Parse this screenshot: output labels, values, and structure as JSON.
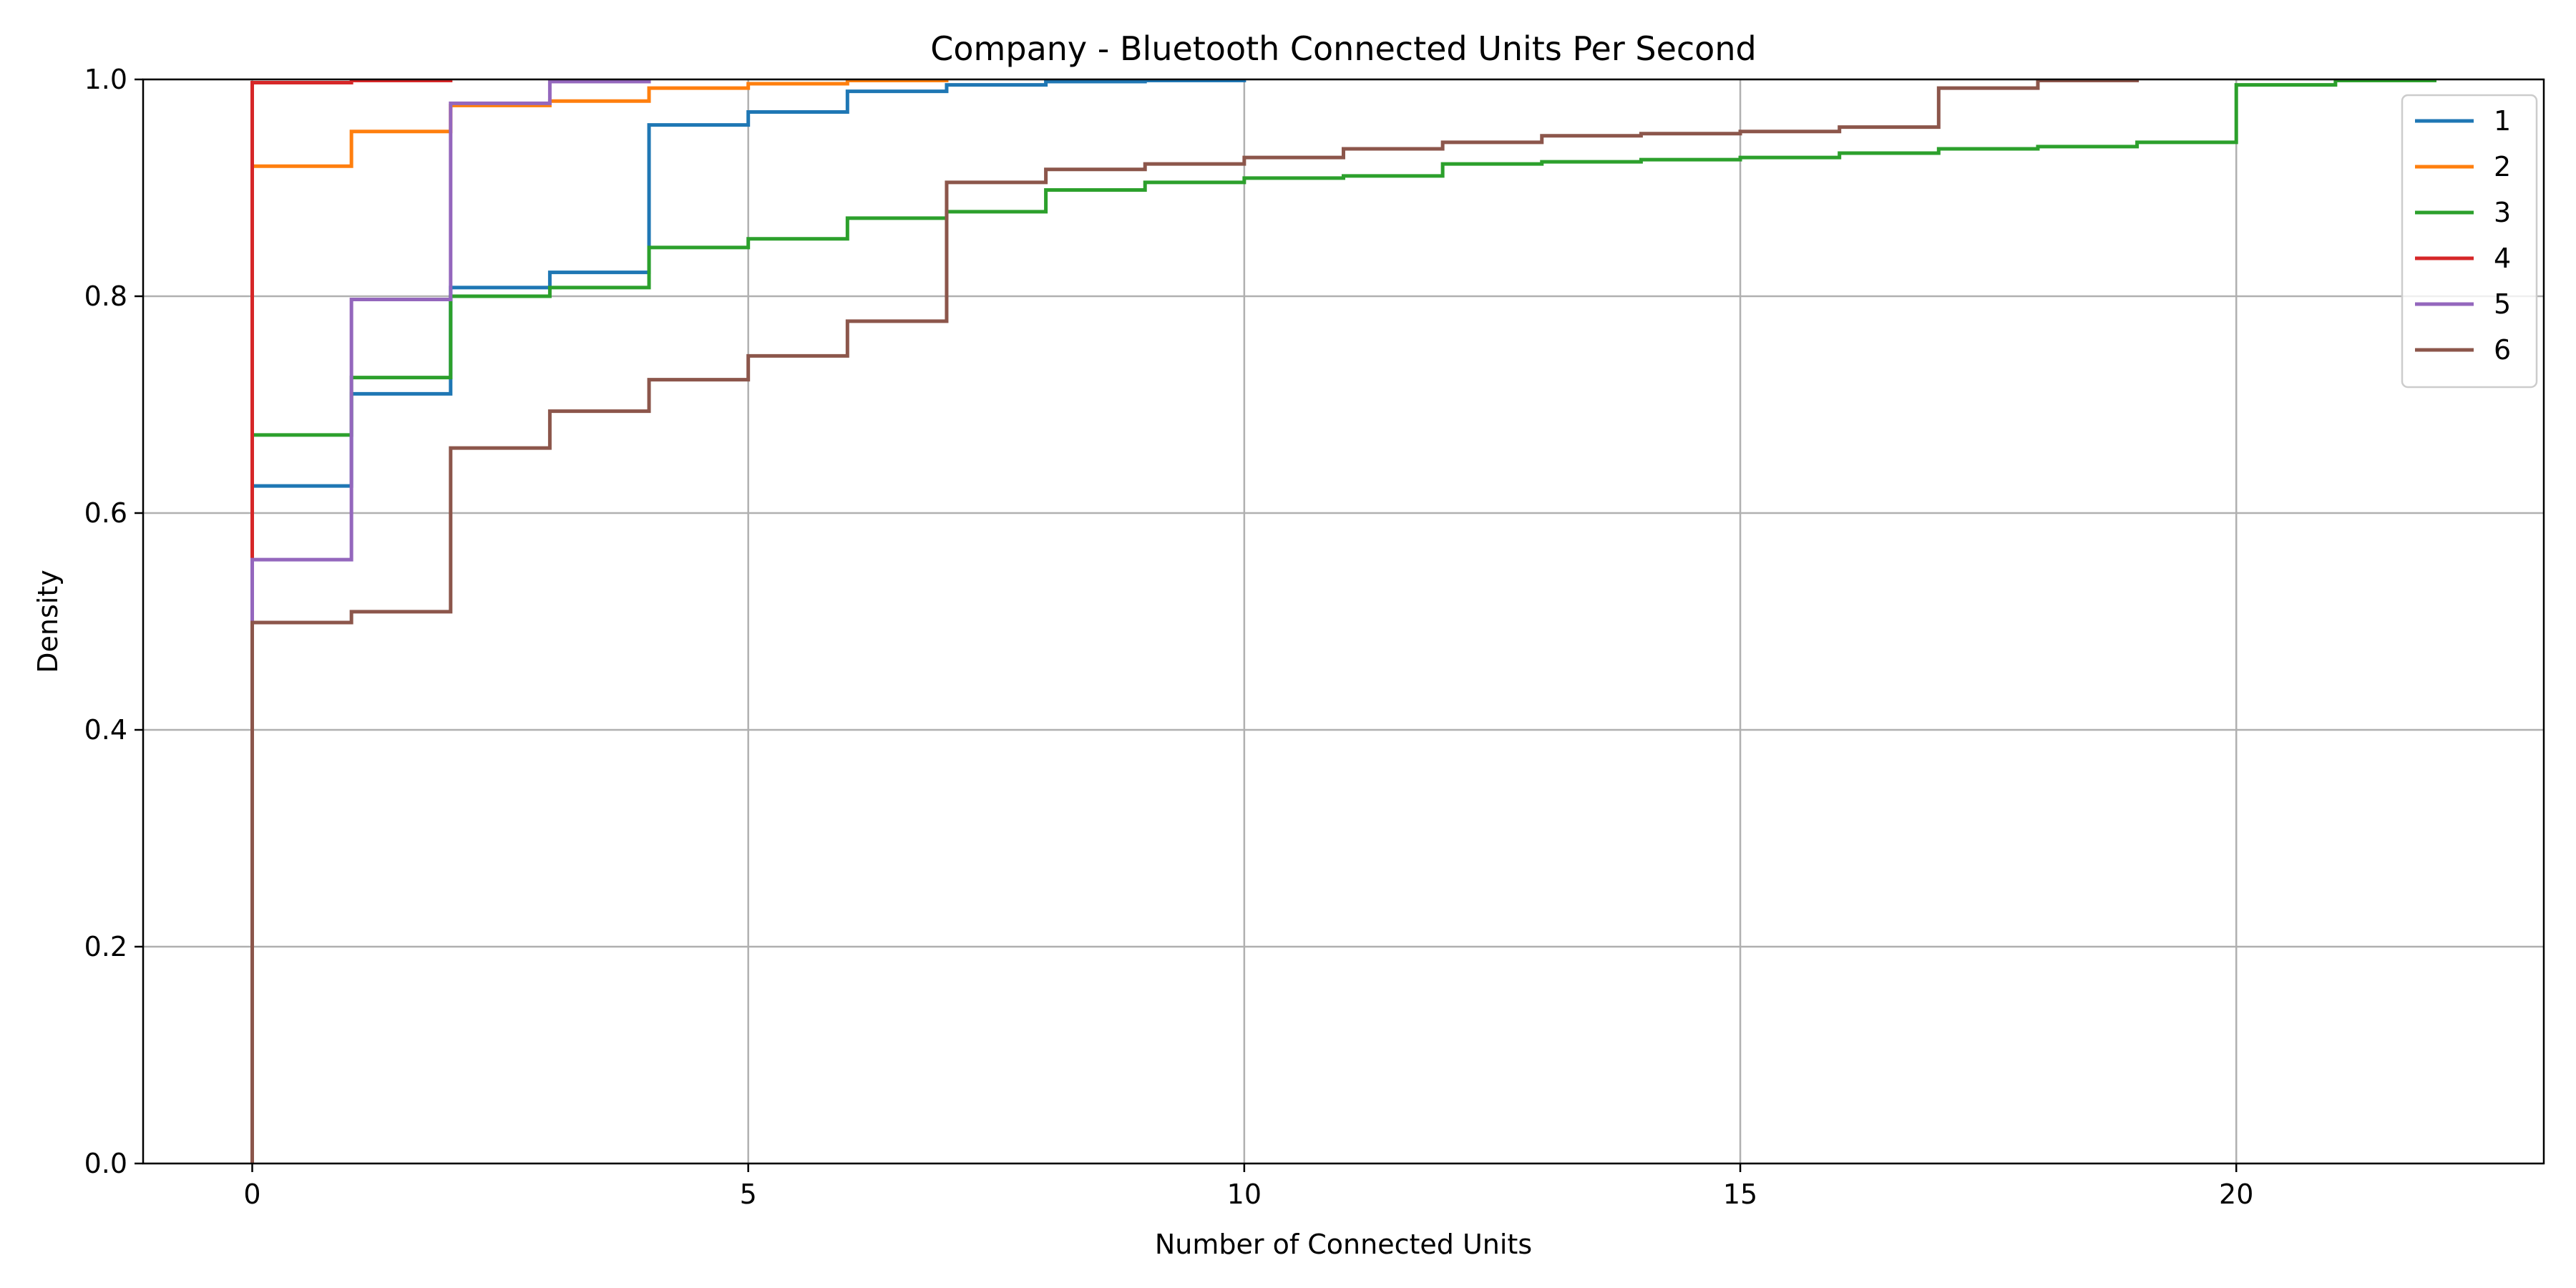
{
  "chart_data": {
    "type": "line",
    "step": "post",
    "title": "Company - Bluetooth Connected Units Per Second",
    "xlabel": "Number of Connected Units",
    "ylabel": "Density",
    "xlim": [
      -1.1,
      23.1
    ],
    "ylim": [
      0,
      1.0
    ],
    "xticks": [
      0,
      5,
      10,
      15,
      20
    ],
    "xtick_labels": [
      "0",
      "5",
      "10",
      "15",
      "20"
    ],
    "yticks": [
      0,
      0.2,
      0.4,
      0.6,
      0.8,
      1.0
    ],
    "ytick_labels": [
      "0.0",
      "0.2",
      "0.4",
      "0.6",
      "0.8",
      "1.0"
    ],
    "grid": true,
    "legend_position": "top-right",
    "series": [
      {
        "name": "1",
        "color": "#1f77b4",
        "x": [
          0,
          1,
          2,
          3,
          4,
          5,
          6,
          7,
          8,
          9,
          10
        ],
        "y": [
          0.625,
          0.71,
          0.808,
          0.822,
          0.958,
          0.97,
          0.989,
          0.995,
          0.998,
          0.999,
          1.0
        ]
      },
      {
        "name": "2",
        "color": "#ff7f0e",
        "x": [
          0,
          1,
          2,
          3,
          4,
          5,
          6,
          7
        ],
        "y": [
          0.92,
          0.952,
          0.976,
          0.98,
          0.992,
          0.996,
          0.999,
          1.0
        ]
      },
      {
        "name": "3",
        "color": "#2ca02c",
        "x": [
          0,
          1,
          2,
          3,
          4,
          5,
          6,
          7,
          8,
          9,
          10,
          11,
          12,
          13,
          14,
          15,
          16,
          17,
          18,
          19,
          20,
          21,
          22
        ],
        "y": [
          0.672,
          0.725,
          0.8,
          0.808,
          0.845,
          0.853,
          0.872,
          0.878,
          0.898,
          0.905,
          0.909,
          0.911,
          0.922,
          0.924,
          0.926,
          0.928,
          0.932,
          0.936,
          0.938,
          0.942,
          0.995,
          0.999,
          1.0
        ]
      },
      {
        "name": "4",
        "color": "#d62728",
        "x": [
          0,
          1,
          2
        ],
        "y": [
          0.997,
          0.999,
          1.0
        ]
      },
      {
        "name": "5",
        "color": "#9467bd",
        "x": [
          0,
          1,
          2,
          3,
          4
        ],
        "y": [
          0.557,
          0.797,
          0.978,
          0.998,
          1.0
        ]
      },
      {
        "name": "6",
        "color": "#8c564b",
        "x": [
          0,
          1,
          2,
          3,
          4,
          5,
          6,
          7,
          8,
          9,
          10,
          11,
          12,
          13,
          14,
          15,
          16,
          17,
          18,
          19
        ],
        "y": [
          0.499,
          0.509,
          0.66,
          0.694,
          0.723,
          0.745,
          0.777,
          0.905,
          0.917,
          0.922,
          0.928,
          0.936,
          0.942,
          0.948,
          0.95,
          0.952,
          0.956,
          0.992,
          0.999,
          1.0
        ]
      }
    ]
  }
}
